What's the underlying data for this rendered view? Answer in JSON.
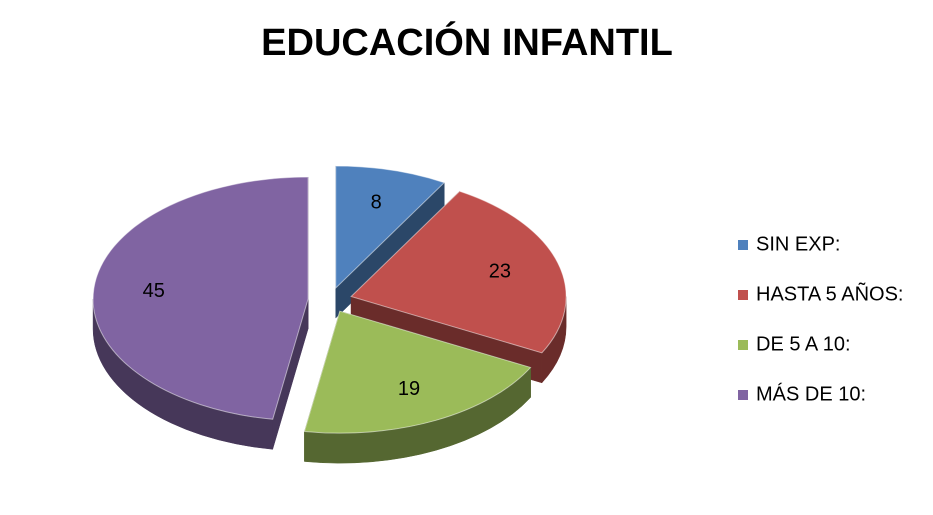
{
  "chart_data": {
    "type": "pie",
    "title": "EDUCACIÓN INFANTIL",
    "categories": [
      "SIN EXP:",
      "HASTA 5 AÑOS:",
      "DE 5 A 10:",
      "MÁS DE 10:"
    ],
    "values": [
      8,
      23,
      19,
      45
    ],
    "colors": [
      "#4f81bd",
      "#c0504d",
      "#9bbb59",
      "#8064a2"
    ],
    "legend": "right",
    "three_d": true,
    "exploded": true
  }
}
